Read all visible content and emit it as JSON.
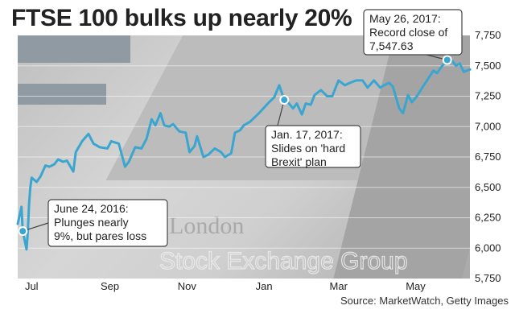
{
  "title": "FTSE 100 bulks up nearly 20%",
  "source": "Source: MarketWatch, Getty Images",
  "background_text": [
    "London",
    "Stock Exchange Group"
  ],
  "colors": {
    "line": "#3aa6cf",
    "dot": "#3aa6cf",
    "annotation_bg": "#ffffff",
    "annotation_border": "#444444",
    "title": "#222222"
  },
  "chart_data": {
    "type": "line",
    "title": "FTSE 100 bulks up nearly 20%",
    "xlabel": "",
    "ylabel": "",
    "ylim": [
      5750,
      7750
    ],
    "yticks": [
      5750,
      6000,
      6250,
      6500,
      6750,
      7000,
      7250,
      7500,
      7750
    ],
    "ytick_labels": [
      "5,750",
      "6,000",
      "6,250",
      "6,500",
      "6,750",
      "7,000",
      "7,250",
      "7,500",
      "7,750"
    ],
    "xlim": [
      "2016-06-20",
      "2017-06-13"
    ],
    "xtick_labels": [
      {
        "label": "Jul",
        "date": "2016-07-01"
      },
      {
        "label": "Sep",
        "date": "2016-09-01"
      },
      {
        "label": "Nov",
        "date": "2016-11-01"
      },
      {
        "label": "Jan",
        "date": "2017-01-01"
      },
      {
        "label": "Mar",
        "date": "2017-03-01"
      },
      {
        "label": "May",
        "date": "2017-05-01"
      }
    ],
    "grid": true,
    "series": [
      {
        "points": [
          [
            "2016-06-20",
            6200
          ],
          [
            "2016-06-23",
            6340
          ],
          [
            "2016-06-24",
            6140
          ],
          [
            "2016-06-27",
            5990
          ],
          [
            "2016-06-28",
            6140
          ],
          [
            "2016-06-29",
            6360
          ],
          [
            "2016-06-30",
            6500
          ],
          [
            "2016-07-01",
            6580
          ],
          [
            "2016-07-05",
            6545
          ],
          [
            "2016-07-08",
            6590
          ],
          [
            "2016-07-12",
            6680
          ],
          [
            "2016-07-15",
            6670
          ],
          [
            "2016-07-19",
            6690
          ],
          [
            "2016-07-22",
            6730
          ],
          [
            "2016-07-26",
            6710
          ],
          [
            "2016-07-29",
            6720
          ],
          [
            "2016-08-03",
            6630
          ],
          [
            "2016-08-05",
            6790
          ],
          [
            "2016-08-10",
            6880
          ],
          [
            "2016-08-15",
            6940
          ],
          [
            "2016-08-19",
            6860
          ],
          [
            "2016-08-24",
            6830
          ],
          [
            "2016-08-30",
            6820
          ],
          [
            "2016-09-02",
            6880
          ],
          [
            "2016-09-08",
            6860
          ],
          [
            "2016-09-13",
            6670
          ],
          [
            "2016-09-16",
            6710
          ],
          [
            "2016-09-21",
            6830
          ],
          [
            "2016-09-26",
            6820
          ],
          [
            "2016-09-30",
            6900
          ],
          [
            "2016-10-04",
            7060
          ],
          [
            "2016-10-07",
            7010
          ],
          [
            "2016-10-11",
            7110
          ],
          [
            "2016-10-14",
            7010
          ],
          [
            "2016-10-18",
            7000
          ],
          [
            "2016-10-21",
            7020
          ],
          [
            "2016-10-26",
            6960
          ],
          [
            "2016-10-31",
            6950
          ],
          [
            "2016-11-03",
            6790
          ],
          [
            "2016-11-07",
            6840
          ],
          [
            "2016-11-09",
            6920
          ],
          [
            "2016-11-14",
            6750
          ],
          [
            "2016-11-18",
            6770
          ],
          [
            "2016-11-23",
            6820
          ],
          [
            "2016-11-28",
            6790
          ],
          [
            "2016-12-01",
            6750
          ],
          [
            "2016-12-06",
            6780
          ],
          [
            "2016-12-09",
            6950
          ],
          [
            "2016-12-13",
            6970
          ],
          [
            "2016-12-16",
            7010
          ],
          [
            "2016-12-21",
            7040
          ],
          [
            "2016-12-28",
            7110
          ],
          [
            "2017-01-04",
            7190
          ],
          [
            "2017-01-09",
            7240
          ],
          [
            "2017-01-13",
            7340
          ],
          [
            "2017-01-17",
            7220
          ],
          [
            "2017-01-20",
            7200
          ],
          [
            "2017-01-24",
            7150
          ],
          [
            "2017-01-27",
            7190
          ],
          [
            "2017-01-31",
            7100
          ],
          [
            "2017-02-03",
            7190
          ],
          [
            "2017-02-07",
            7180
          ],
          [
            "2017-02-10",
            7260
          ],
          [
            "2017-02-15",
            7300
          ],
          [
            "2017-02-20",
            7250
          ],
          [
            "2017-02-24",
            7250
          ],
          [
            "2017-03-01",
            7380
          ],
          [
            "2017-03-06",
            7340
          ],
          [
            "2017-03-10",
            7360
          ],
          [
            "2017-03-15",
            7380
          ],
          [
            "2017-03-20",
            7380
          ],
          [
            "2017-03-24",
            7320
          ],
          [
            "2017-03-29",
            7380
          ],
          [
            "2017-04-03",
            7320
          ],
          [
            "2017-04-06",
            7340
          ],
          [
            "2017-04-10",
            7360
          ],
          [
            "2017-04-13",
            7330
          ],
          [
            "2017-04-18",
            7150
          ],
          [
            "2017-04-21",
            7110
          ],
          [
            "2017-04-25",
            7260
          ],
          [
            "2017-04-28",
            7200
          ],
          [
            "2017-05-02",
            7250
          ],
          [
            "2017-05-05",
            7300
          ],
          [
            "2017-05-10",
            7380
          ],
          [
            "2017-05-15",
            7460
          ],
          [
            "2017-05-18",
            7440
          ],
          [
            "2017-05-22",
            7500
          ],
          [
            "2017-05-26",
            7548
          ],
          [
            "2017-05-30",
            7540
          ],
          [
            "2017-06-02",
            7500
          ],
          [
            "2017-06-05",
            7520
          ],
          [
            "2017-06-08",
            7450
          ],
          [
            "2017-06-13",
            7470
          ]
        ]
      }
    ],
    "annotations": [
      {
        "date": "2016-06-24",
        "value": 6140,
        "lines": [
          "June 24, 2016:",
          "Plunges nearly",
          "9%, but pares loss"
        ]
      },
      {
        "date": "2017-01-17",
        "value": 7220,
        "lines": [
          "Jan. 17, 2017:",
          "Slides on 'hard",
          "Brexit' plan"
        ]
      },
      {
        "date": "2017-05-26",
        "value": 7548,
        "lines": [
          "May 26, 2017:",
          "Record close of",
          "7,547.63"
        ]
      }
    ]
  }
}
